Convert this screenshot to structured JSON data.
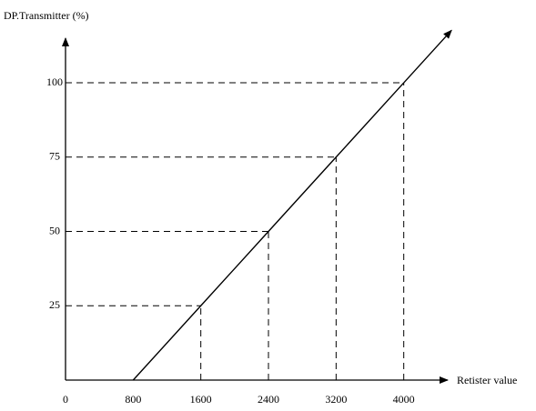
{
  "chart_data": {
    "type": "line",
    "y_label": "DP.Transmitter (%)",
    "x_label": "Retister value",
    "x": [
      800,
      1600,
      2400,
      3200,
      4000
    ],
    "series": [
      {
        "color": "#000000",
        "values": [
          0,
          25,
          50,
          75,
          100
        ]
      }
    ],
    "xlim": [
      0,
      4520
    ],
    "ylim": [
      0,
      115
    ],
    "xticks": [
      0,
      800,
      1600,
      2400,
      3200,
      4000
    ],
    "yticks": [
      25,
      50,
      75,
      100
    ],
    "dashed_guides": true
  }
}
